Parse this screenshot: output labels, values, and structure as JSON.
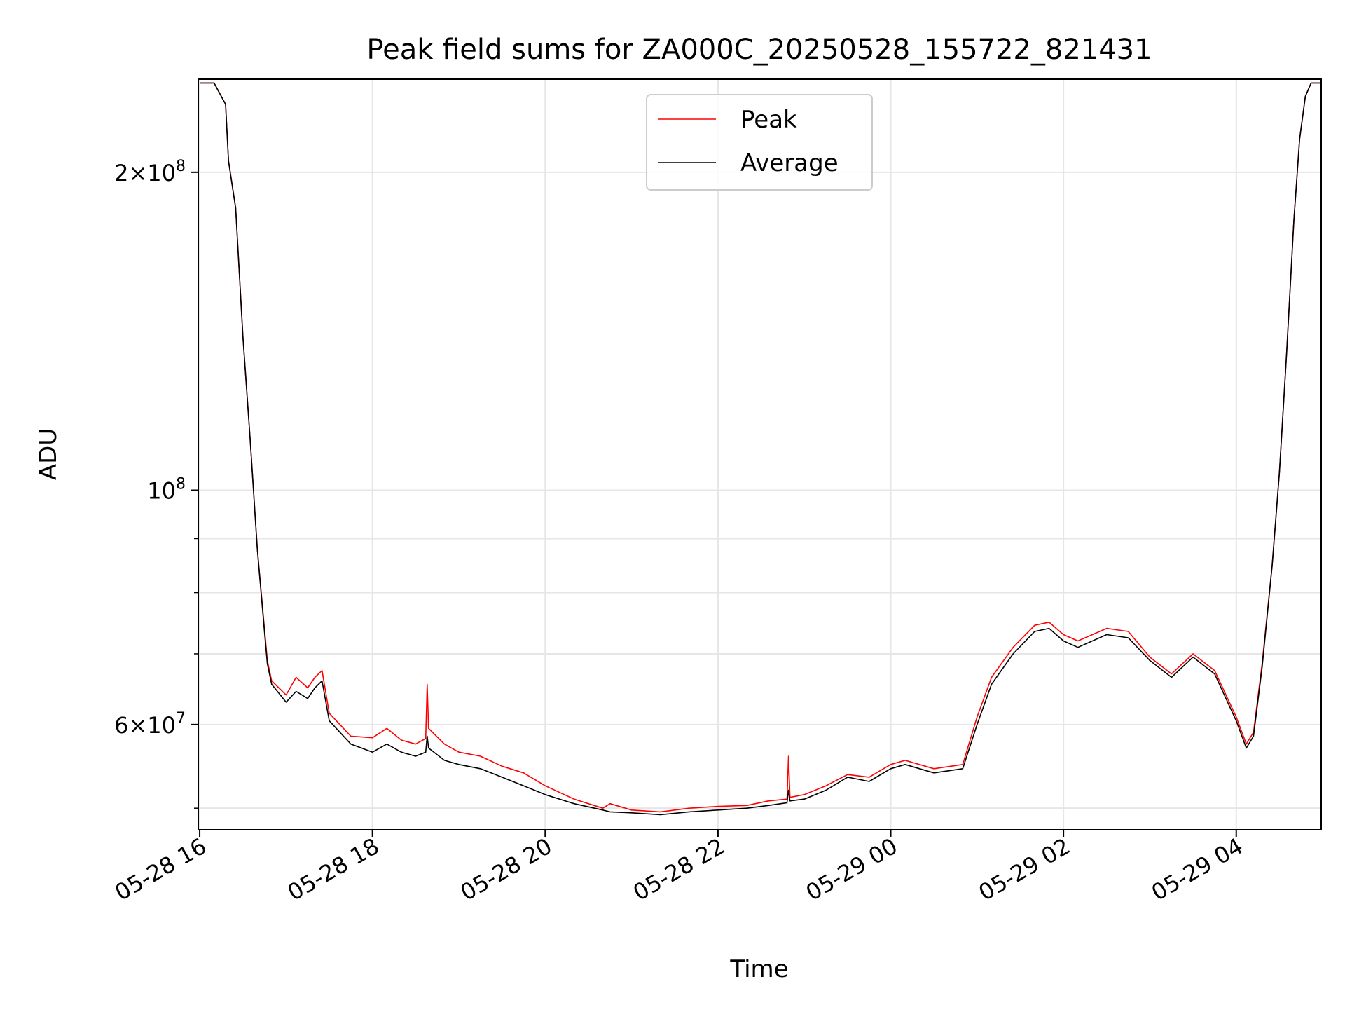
{
  "chart_data": {
    "type": "line",
    "title": "Peak field sums for ZA000C_20250528_155722_821431",
    "xlabel": "Time",
    "ylabel": "ADU",
    "y_scale": "log",
    "ylim": [
      47700000,
      245000000
    ],
    "xlim": [
      "2025-05-28 15:59",
      "2025-05-29 04:59"
    ],
    "grid": true,
    "legend_position": "upper-center",
    "x_ticks": [
      {
        "t": "2025-05-28 16:00",
        "label": "05-28 16"
      },
      {
        "t": "2025-05-28 18:00",
        "label": "05-28 18"
      },
      {
        "t": "2025-05-28 20:00",
        "label": "05-28 20"
      },
      {
        "t": "2025-05-28 22:00",
        "label": "05-28 22"
      },
      {
        "t": "2025-05-29 00:00",
        "label": "05-29 00"
      },
      {
        "t": "2025-05-29 02:00",
        "label": "05-29 02"
      },
      {
        "t": "2025-05-29 04:00",
        "label": "05-29 04"
      }
    ],
    "y_major_ticks": [
      {
        "v": 60000000,
        "base": "6×10",
        "exp": "7"
      },
      {
        "v": 100000000,
        "base": "10",
        "exp": "8"
      },
      {
        "v": 200000000,
        "base": "2×10",
        "exp": "8"
      }
    ],
    "y_minor_ticks": [
      50000000,
      70000000,
      80000000,
      90000000
    ],
    "series": [
      {
        "name": "Peak",
        "color": "#ff0000",
        "points": [
          [
            "2025-05-28 16:00",
            243000000
          ],
          [
            "2025-05-28 16:10",
            243000000
          ],
          [
            "2025-05-28 16:18",
            232000000
          ],
          [
            "2025-05-28 16:20",
            205000000
          ],
          [
            "2025-05-28 16:25",
            185000000
          ],
          [
            "2025-05-28 16:30",
            140000000
          ],
          [
            "2025-05-28 16:35",
            112000000
          ],
          [
            "2025-05-28 16:40",
            88000000
          ],
          [
            "2025-05-28 16:45",
            74000000
          ],
          [
            "2025-05-28 16:47",
            69000000
          ],
          [
            "2025-05-28 16:50",
            66000000
          ],
          [
            "2025-05-28 17:00",
            64000000
          ],
          [
            "2025-05-28 17:07",
            66500000
          ],
          [
            "2025-05-28 17:15",
            65000000
          ],
          [
            "2025-05-28 17:20",
            66500000
          ],
          [
            "2025-05-28 17:25",
            67500000
          ],
          [
            "2025-05-28 17:30",
            61500000
          ],
          [
            "2025-05-28 17:45",
            58500000
          ],
          [
            "2025-05-28 18:00",
            58300000
          ],
          [
            "2025-05-28 18:10",
            59500000
          ],
          [
            "2025-05-28 18:20",
            58000000
          ],
          [
            "2025-05-28 18:30",
            57500000
          ],
          [
            "2025-05-28 18:37",
            58200000
          ],
          [
            "2025-05-28 18:38",
            65500000
          ],
          [
            "2025-05-28 18:39",
            59500000
          ],
          [
            "2025-05-28 18:50",
            57500000
          ],
          [
            "2025-05-28 19:00",
            56500000
          ],
          [
            "2025-05-28 19:15",
            56000000
          ],
          [
            "2025-05-28 19:30",
            54800000
          ],
          [
            "2025-05-28 19:45",
            54000000
          ],
          [
            "2025-05-28 20:00",
            52500000
          ],
          [
            "2025-05-28 20:20",
            51000000
          ],
          [
            "2025-05-28 20:40",
            50000000
          ],
          [
            "2025-05-28 20:45",
            50500000
          ],
          [
            "2025-05-28 21:00",
            49800000
          ],
          [
            "2025-05-28 21:20",
            49600000
          ],
          [
            "2025-05-28 21:40",
            50000000
          ],
          [
            "2025-05-28 22:00",
            50200000
          ],
          [
            "2025-05-28 22:20",
            50300000
          ],
          [
            "2025-05-28 22:35",
            50800000
          ],
          [
            "2025-05-28 22:48",
            51000000
          ],
          [
            "2025-05-28 22:49",
            56000000
          ],
          [
            "2025-05-28 22:50",
            51200000
          ],
          [
            "2025-05-28 23:00",
            51500000
          ],
          [
            "2025-05-28 23:15",
            52500000
          ],
          [
            "2025-05-28 23:30",
            53800000
          ],
          [
            "2025-05-28 23:45",
            53500000
          ],
          [
            "2025-05-29 00:00",
            55000000
          ],
          [
            "2025-05-29 00:10",
            55500000
          ],
          [
            "2025-05-29 00:30",
            54500000
          ],
          [
            "2025-05-29 00:50",
            55000000
          ],
          [
            "2025-05-29 01:00",
            61000000
          ],
          [
            "2025-05-29 01:10",
            66500000
          ],
          [
            "2025-05-29 01:25",
            71000000
          ],
          [
            "2025-05-29 01:40",
            74500000
          ],
          [
            "2025-05-29 01:50",
            75000000
          ],
          [
            "2025-05-29 02:00",
            73000000
          ],
          [
            "2025-05-29 02:10",
            72000000
          ],
          [
            "2025-05-29 02:30",
            74000000
          ],
          [
            "2025-05-29 02:45",
            73500000
          ],
          [
            "2025-05-29 03:00",
            69500000
          ],
          [
            "2025-05-29 03:15",
            67000000
          ],
          [
            "2025-05-29 03:30",
            70000000
          ],
          [
            "2025-05-29 03:45",
            67500000
          ],
          [
            "2025-05-29 04:00",
            61000000
          ],
          [
            "2025-05-29 04:07",
            57500000
          ],
          [
            "2025-05-29 04:12",
            59000000
          ],
          [
            "2025-05-29 04:18",
            68500000
          ],
          [
            "2025-05-29 04:25",
            85000000
          ],
          [
            "2025-05-29 04:30",
            104000000
          ],
          [
            "2025-05-29 04:35",
            135000000
          ],
          [
            "2025-05-29 04:40",
            180000000
          ],
          [
            "2025-05-29 04:44",
            215000000
          ],
          [
            "2025-05-29 04:48",
            236000000
          ],
          [
            "2025-05-29 04:52",
            243000000
          ],
          [
            "2025-05-29 04:59",
            243000000
          ]
        ]
      },
      {
        "name": "Average",
        "color": "#000000",
        "points": [
          [
            "2025-05-28 16:00",
            243000000
          ],
          [
            "2025-05-28 16:10",
            243000000
          ],
          [
            "2025-05-28 16:18",
            232000000
          ],
          [
            "2025-05-28 16:20",
            205000000
          ],
          [
            "2025-05-28 16:25",
            185000000
          ],
          [
            "2025-05-28 16:30",
            140000000
          ],
          [
            "2025-05-28 16:35",
            112000000
          ],
          [
            "2025-05-28 16:40",
            88000000
          ],
          [
            "2025-05-28 16:45",
            73500000
          ],
          [
            "2025-05-28 16:47",
            68500000
          ],
          [
            "2025-05-28 16:50",
            65500000
          ],
          [
            "2025-05-28 17:00",
            63000000
          ],
          [
            "2025-05-28 17:07",
            64500000
          ],
          [
            "2025-05-28 17:15",
            63500000
          ],
          [
            "2025-05-28 17:20",
            65000000
          ],
          [
            "2025-05-28 17:25",
            66000000
          ],
          [
            "2025-05-28 17:30",
            60500000
          ],
          [
            "2025-05-28 17:45",
            57500000
          ],
          [
            "2025-05-28 18:00",
            56500000
          ],
          [
            "2025-05-28 18:10",
            57500000
          ],
          [
            "2025-05-28 18:20",
            56500000
          ],
          [
            "2025-05-28 18:30",
            56000000
          ],
          [
            "2025-05-28 18:37",
            56500000
          ],
          [
            "2025-05-28 18:38",
            58500000
          ],
          [
            "2025-05-28 18:39",
            57000000
          ],
          [
            "2025-05-28 18:50",
            55500000
          ],
          [
            "2025-05-28 19:00",
            55000000
          ],
          [
            "2025-05-28 19:15",
            54500000
          ],
          [
            "2025-05-28 19:30",
            53500000
          ],
          [
            "2025-05-28 19:45",
            52500000
          ],
          [
            "2025-05-28 20:00",
            51500000
          ],
          [
            "2025-05-28 20:20",
            50500000
          ],
          [
            "2025-05-28 20:40",
            49800000
          ],
          [
            "2025-05-28 20:45",
            49600000
          ],
          [
            "2025-05-28 21:00",
            49500000
          ],
          [
            "2025-05-28 21:20",
            49300000
          ],
          [
            "2025-05-28 21:40",
            49600000
          ],
          [
            "2025-05-28 22:00",
            49800000
          ],
          [
            "2025-05-28 22:20",
            50000000
          ],
          [
            "2025-05-28 22:35",
            50300000
          ],
          [
            "2025-05-28 22:48",
            50600000
          ],
          [
            "2025-05-28 22:49",
            52000000
          ],
          [
            "2025-05-28 22:50",
            50800000
          ],
          [
            "2025-05-28 23:00",
            51000000
          ],
          [
            "2025-05-28 23:15",
            52000000
          ],
          [
            "2025-05-28 23:30",
            53500000
          ],
          [
            "2025-05-28 23:45",
            53000000
          ],
          [
            "2025-05-29 00:00",
            54500000
          ],
          [
            "2025-05-29 00:10",
            55000000
          ],
          [
            "2025-05-29 00:30",
            54000000
          ],
          [
            "2025-05-29 00:50",
            54500000
          ],
          [
            "2025-05-29 01:00",
            60000000
          ],
          [
            "2025-05-29 01:10",
            65500000
          ],
          [
            "2025-05-29 01:25",
            70000000
          ],
          [
            "2025-05-29 01:40",
            73500000
          ],
          [
            "2025-05-29 01:50",
            74000000
          ],
          [
            "2025-05-29 02:00",
            72000000
          ],
          [
            "2025-05-29 02:10",
            71000000
          ],
          [
            "2025-05-29 02:30",
            73000000
          ],
          [
            "2025-05-29 02:45",
            72500000
          ],
          [
            "2025-05-29 03:00",
            69000000
          ],
          [
            "2025-05-29 03:15",
            66500000
          ],
          [
            "2025-05-29 03:30",
            69500000
          ],
          [
            "2025-05-29 03:45",
            67000000
          ],
          [
            "2025-05-29 04:00",
            60500000
          ],
          [
            "2025-05-29 04:07",
            57000000
          ],
          [
            "2025-05-29 04:12",
            58500000
          ],
          [
            "2025-05-29 04:18",
            68000000
          ],
          [
            "2025-05-29 04:25",
            85000000
          ],
          [
            "2025-05-29 04:30",
            104000000
          ],
          [
            "2025-05-29 04:35",
            135000000
          ],
          [
            "2025-05-29 04:40",
            180000000
          ],
          [
            "2025-05-29 04:44",
            215000000
          ],
          [
            "2025-05-29 04:48",
            236000000
          ],
          [
            "2025-05-29 04:52",
            243000000
          ],
          [
            "2025-05-29 04:59",
            243000000
          ]
        ]
      }
    ]
  }
}
